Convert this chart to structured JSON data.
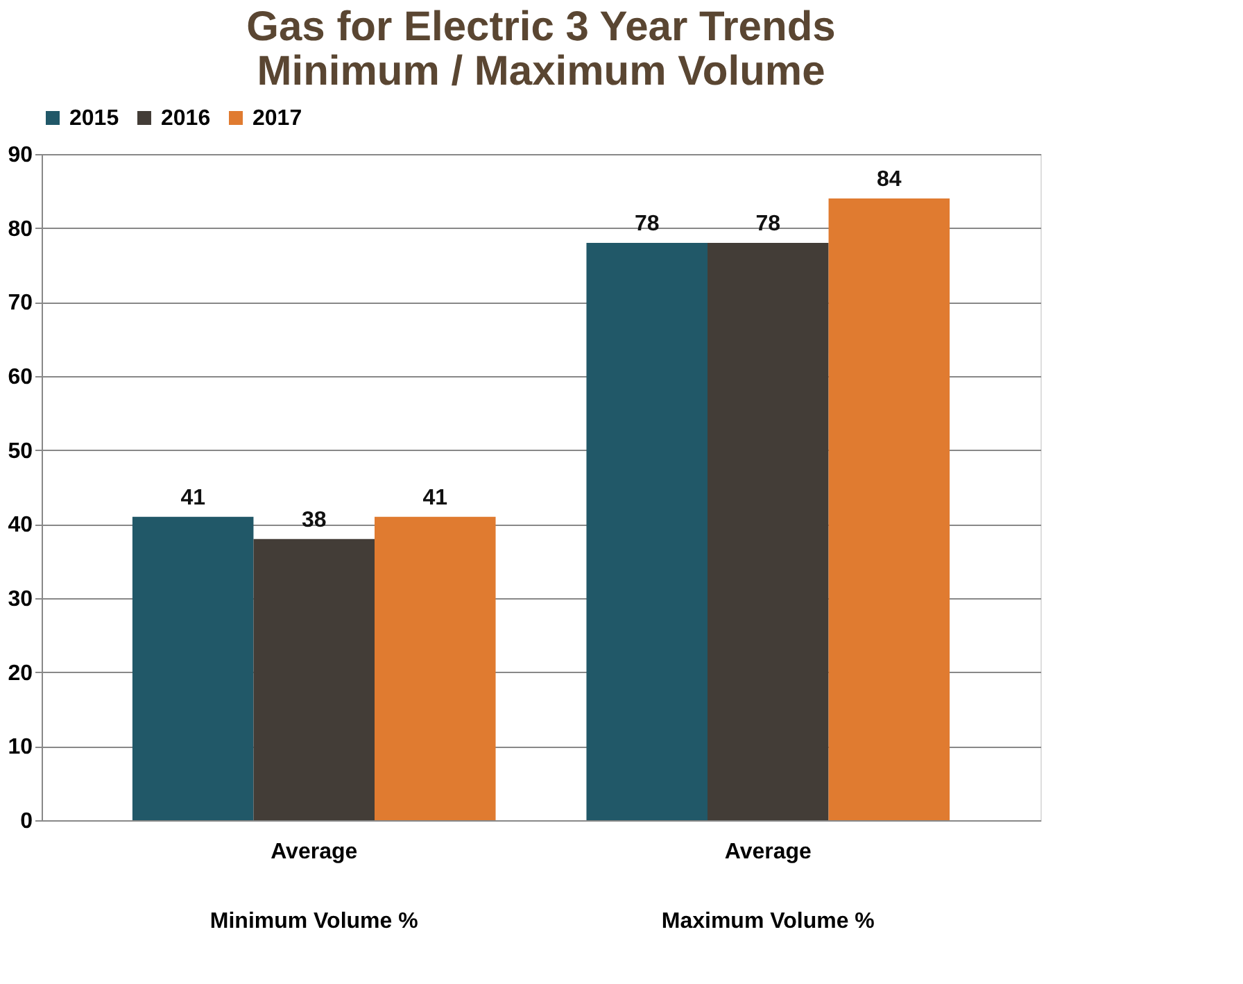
{
  "chart_data": {
    "type": "bar",
    "title": [
      "Gas for Electric 3 Year Trends",
      "Minimum / Maximum Volume"
    ],
    "categories": [
      "Average\nMinimum Volume %",
      "Average\nMaximum Volume %"
    ],
    "series": [
      {
        "name": "2015",
        "color": "#215868",
        "values": [
          41,
          78
        ]
      },
      {
        "name": "2016",
        "color": "#433d37",
        "values": [
          38,
          78
        ]
      },
      {
        "name": "2017",
        "color": "#e07b30",
        "values": [
          41,
          84
        ]
      }
    ],
    "ylim": [
      0,
      90
    ],
    "yticks": [
      0,
      10,
      20,
      30,
      40,
      50,
      60,
      70,
      80,
      90
    ],
    "grid": "y",
    "legend": "top",
    "data_labels": true
  }
}
